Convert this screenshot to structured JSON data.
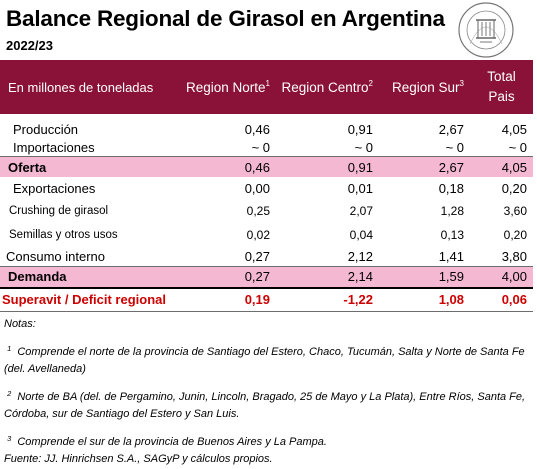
{
  "title": "Balance Regional de Girasol en Argentina",
  "subtitle": "2022/23",
  "header": {
    "unit_label": "En millones de toneladas",
    "col_norte": "Region Norte",
    "col_norte_sup": "1",
    "col_centro": "Region Centro",
    "col_centro_sup": "2",
    "col_sur": "Region Sur",
    "col_sur_sup": "3",
    "col_total_line1": "Total",
    "col_total_line2": "Pais"
  },
  "rows": [
    {
      "label": "Producción",
      "norte": "0,46",
      "centro": "0,91",
      "sur": "2,67",
      "total": "4,05"
    },
    {
      "label": "Importaciones",
      "norte": "~ 0",
      "centro": "~ 0",
      "sur": "~ 0",
      "total": "~ 0"
    },
    {
      "label": "Oferta",
      "norte": "0,46",
      "centro": "0,91",
      "sur": "2,67",
      "total": "4,05"
    },
    {
      "label": "Exportaciones",
      "norte": "0,00",
      "centro": "0,01",
      "sur": "0,18",
      "total": "0,20"
    },
    {
      "label": "Crushing de girasol",
      "norte": "0,25",
      "centro": "2,07",
      "sur": "1,28",
      "total": "3,60"
    },
    {
      "label": "Semillas y otros usos",
      "norte": "0,02",
      "centro": "0,04",
      "sur": "0,13",
      "total": "0,20"
    },
    {
      "label": "Consumo interno",
      "norte": "0,27",
      "centro": "2,12",
      "sur": "1,41",
      "total": "3,80"
    },
    {
      "label": "Demanda",
      "norte": "0,27",
      "centro": "2,14",
      "sur": "1,59",
      "total": "4,00"
    },
    {
      "label": "Superavit / Deficit regional",
      "norte": "0,19",
      "centro": "-1,22",
      "sur": "1,08",
      "total": "0,06"
    }
  ],
  "notes": {
    "heading": "Notas:",
    "n1_sup": "1",
    "n1": "Comprende el norte de la provincia de Santiago del Estero, Chaco, Tucumán, Salta y Norte de Santa Fe (del. Avellaneda)",
    "n2_sup": "2",
    "n2": "Norte de BA (del. de Pergamino, Junin, Lincoln, Bragado, 25 de Mayo y La Plata), Entre Ríos, Santa Fe, Córdoba, sur de Santiago del Estero y San Luis.",
    "n3_sup": "3",
    "n3": "Comprende el sur de la provincia de Buenos Aires y La Pampa.",
    "source": "Fuente: JJ. Hinrichsen S.A., SAGyP y cálculos propios."
  },
  "colors": {
    "header_bg": "#8a1238",
    "highlight_bg": "#f4b8d2",
    "deficit_text": "#cc0000"
  }
}
